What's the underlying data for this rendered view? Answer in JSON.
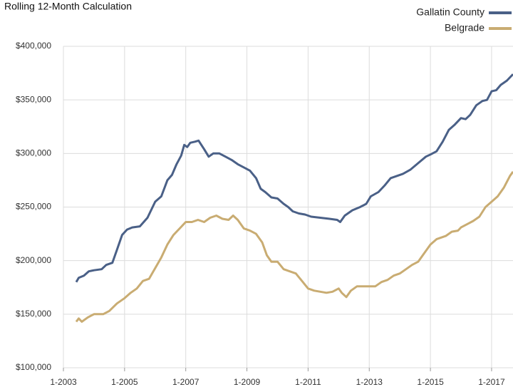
{
  "chart_data": {
    "type": "line",
    "title": "Rolling 12-Month Calculation",
    "xlim": [
      2003,
      2017.7
    ],
    "xticks": [
      {
        "value": 2003,
        "label": "1-2003"
      },
      {
        "value": 2005,
        "label": "1-2005"
      },
      {
        "value": 2007,
        "label": "1-2007"
      },
      {
        "value": 2009,
        "label": "1-2009"
      },
      {
        "value": 2011,
        "label": "1-2011"
      },
      {
        "value": 2013,
        "label": "1-2013"
      },
      {
        "value": 2015,
        "label": "1-2015"
      },
      {
        "value": 2017,
        "label": "1-2017"
      }
    ],
    "ylim": [
      100000,
      400000
    ],
    "yticks": [
      {
        "value": 100000,
        "label": "$100,000"
      },
      {
        "value": 150000,
        "label": "$150,000"
      },
      {
        "value": 200000,
        "label": "$200,000"
      },
      {
        "value": 250000,
        "label": "$250,000"
      },
      {
        "value": 300000,
        "label": "$300,000"
      },
      {
        "value": 350000,
        "label": "$350,000"
      },
      {
        "value": 400000,
        "label": "$400,000"
      }
    ],
    "grid": true,
    "legend": "top-right",
    "series": [
      {
        "name": "Gallatin County",
        "color": "#4a6087",
        "x": [
          2003.42,
          2003.5,
          2003.67,
          2003.83,
          2004.0,
          2004.25,
          2004.4,
          2004.6,
          2004.75,
          2004.92,
          2005.08,
          2005.25,
          2005.5,
          2005.75,
          2006.0,
          2006.2,
          2006.4,
          2006.55,
          2006.7,
          2006.85,
          2006.95,
          2007.05,
          2007.15,
          2007.3,
          2007.42,
          2007.6,
          2007.75,
          2007.9,
          2008.1,
          2008.3,
          2008.5,
          2008.7,
          2008.9,
          2009.1,
          2009.3,
          2009.45,
          2009.6,
          2009.8,
          2010.0,
          2010.2,
          2010.35,
          2010.5,
          2010.7,
          2010.9,
          2011.1,
          2011.4,
          2011.7,
          2011.95,
          2012.05,
          2012.2,
          2012.45,
          2012.7,
          2012.9,
          2013.05,
          2013.3,
          2013.5,
          2013.7,
          2013.9,
          2014.1,
          2014.35,
          2014.6,
          2014.85,
          2015.0,
          2015.2,
          2015.4,
          2015.6,
          2015.8,
          2016.0,
          2016.15,
          2016.3,
          2016.5,
          2016.7,
          2016.85,
          2017.0,
          2017.15,
          2017.3,
          2017.5,
          2017.7
        ],
        "values": [
          180000,
          184000,
          186000,
          190000,
          191000,
          192000,
          196000,
          198000,
          210000,
          224000,
          229000,
          231000,
          232000,
          240000,
          255000,
          260000,
          275000,
          280000,
          290000,
          298000,
          308000,
          306000,
          310000,
          311000,
          312000,
          304000,
          297000,
          300000,
          300000,
          297000,
          294000,
          290000,
          287000,
          284000,
          277000,
          267000,
          264000,
          259000,
          258000,
          253000,
          250000,
          246000,
          244000,
          243000,
          241000,
          240000,
          239000,
          238000,
          236000,
          242000,
          247000,
          250000,
          253000,
          260000,
          264000,
          270000,
          277000,
          279000,
          281000,
          285000,
          291000,
          297000,
          299000,
          302000,
          311000,
          322000,
          327000,
          333000,
          332000,
          336000,
          345000,
          349000,
          350000,
          358000,
          359000,
          364000,
          368000,
          374000
        ]
      },
      {
        "name": "Belgrade",
        "color": "#c9ac72",
        "x": [
          2003.42,
          2003.5,
          2003.6,
          2003.8,
          2004.0,
          2004.3,
          2004.5,
          2004.75,
          2005.0,
          2005.2,
          2005.4,
          2005.6,
          2005.8,
          2006.0,
          2006.2,
          2006.4,
          2006.6,
          2006.8,
          2007.0,
          2007.2,
          2007.4,
          2007.6,
          2007.8,
          2008.0,
          2008.2,
          2008.4,
          2008.55,
          2008.7,
          2008.9,
          2009.1,
          2009.3,
          2009.5,
          2009.65,
          2009.8,
          2010.0,
          2010.2,
          2010.4,
          2010.6,
          2010.8,
          2011.0,
          2011.2,
          2011.4,
          2011.6,
          2011.8,
          2012.0,
          2012.1,
          2012.25,
          2012.4,
          2012.6,
          2012.9,
          2013.2,
          2013.4,
          2013.6,
          2013.8,
          2014.0,
          2014.2,
          2014.4,
          2014.6,
          2014.8,
          2015.0,
          2015.2,
          2015.5,
          2015.7,
          2015.9,
          2016.0,
          2016.2,
          2016.4,
          2016.6,
          2016.8,
          2017.0,
          2017.2,
          2017.4,
          2017.6,
          2017.7
        ],
        "values": [
          143000,
          146000,
          143000,
          147000,
          150000,
          150000,
          153000,
          160000,
          165000,
          170000,
          174000,
          181000,
          183000,
          193000,
          203000,
          215000,
          224000,
          230000,
          236000,
          236000,
          238000,
          236000,
          240000,
          242000,
          239000,
          238000,
          242000,
          238000,
          230000,
          228000,
          225000,
          217000,
          205000,
          199000,
          199000,
          192000,
          190000,
          188000,
          181000,
          174000,
          172000,
          171000,
          170000,
          171000,
          174000,
          170000,
          166000,
          172000,
          176000,
          176000,
          176000,
          180000,
          182000,
          186000,
          188000,
          192000,
          196000,
          199000,
          207000,
          215000,
          220000,
          223000,
          227000,
          228000,
          231000,
          234000,
          237000,
          241000,
          250000,
          255000,
          260000,
          268000,
          279000,
          283000
        ]
      }
    ]
  }
}
